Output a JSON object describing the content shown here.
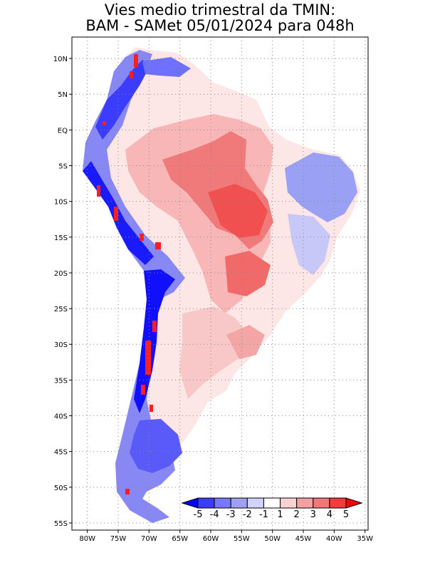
{
  "title": {
    "line1": "Vies medio trimestral da TMIN:",
    "line2": "BAM - SAMet 05/01/2024  para 048h"
  },
  "map": {
    "lon_range": [
      -82.5,
      -34.5
    ],
    "lat_range": [
      -56,
      13
    ],
    "lon_ticks": [
      {
        "value": -80,
        "label": "80W"
      },
      {
        "value": -75,
        "label": "75W"
      },
      {
        "value": -70,
        "label": "70W"
      },
      {
        "value": -65,
        "label": "65W"
      },
      {
        "value": -60,
        "label": "60W"
      },
      {
        "value": -55,
        "label": "55W"
      },
      {
        "value": -50,
        "label": "50W"
      },
      {
        "value": -45,
        "label": "45W"
      },
      {
        "value": -40,
        "label": "40W"
      },
      {
        "value": -35,
        "label": "35W"
      }
    ],
    "lat_ticks": [
      {
        "value": 10,
        "label": "10N"
      },
      {
        "value": 5,
        "label": "5N"
      },
      {
        "value": 0,
        "label": "EQ"
      },
      {
        "value": -5,
        "label": "5S"
      },
      {
        "value": -10,
        "label": "10S"
      },
      {
        "value": -15,
        "label": "15S"
      },
      {
        "value": -20,
        "label": "20S"
      },
      {
        "value": -25,
        "label": "25S"
      },
      {
        "value": -30,
        "label": "30S"
      },
      {
        "value": -35,
        "label": "35S"
      },
      {
        "value": -40,
        "label": "40S"
      },
      {
        "value": -45,
        "label": "45S"
      },
      {
        "value": -50,
        "label": "50S"
      },
      {
        "value": -55,
        "label": "55S"
      }
    ],
    "grid": "dotted"
  },
  "colorbar": {
    "labels": [
      "-5",
      "-4",
      "-3",
      "-2",
      "-1",
      "1",
      "2",
      "3",
      "4",
      "5"
    ],
    "colors": [
      "#0000ff",
      "#3c3cff",
      "#7878ff",
      "#a0a0f0",
      "#d2d2fa",
      "#ffffff",
      "#fad2d2",
      "#f5a0a0",
      "#f07878",
      "#f03c3c",
      "#ff0000"
    ]
  }
}
